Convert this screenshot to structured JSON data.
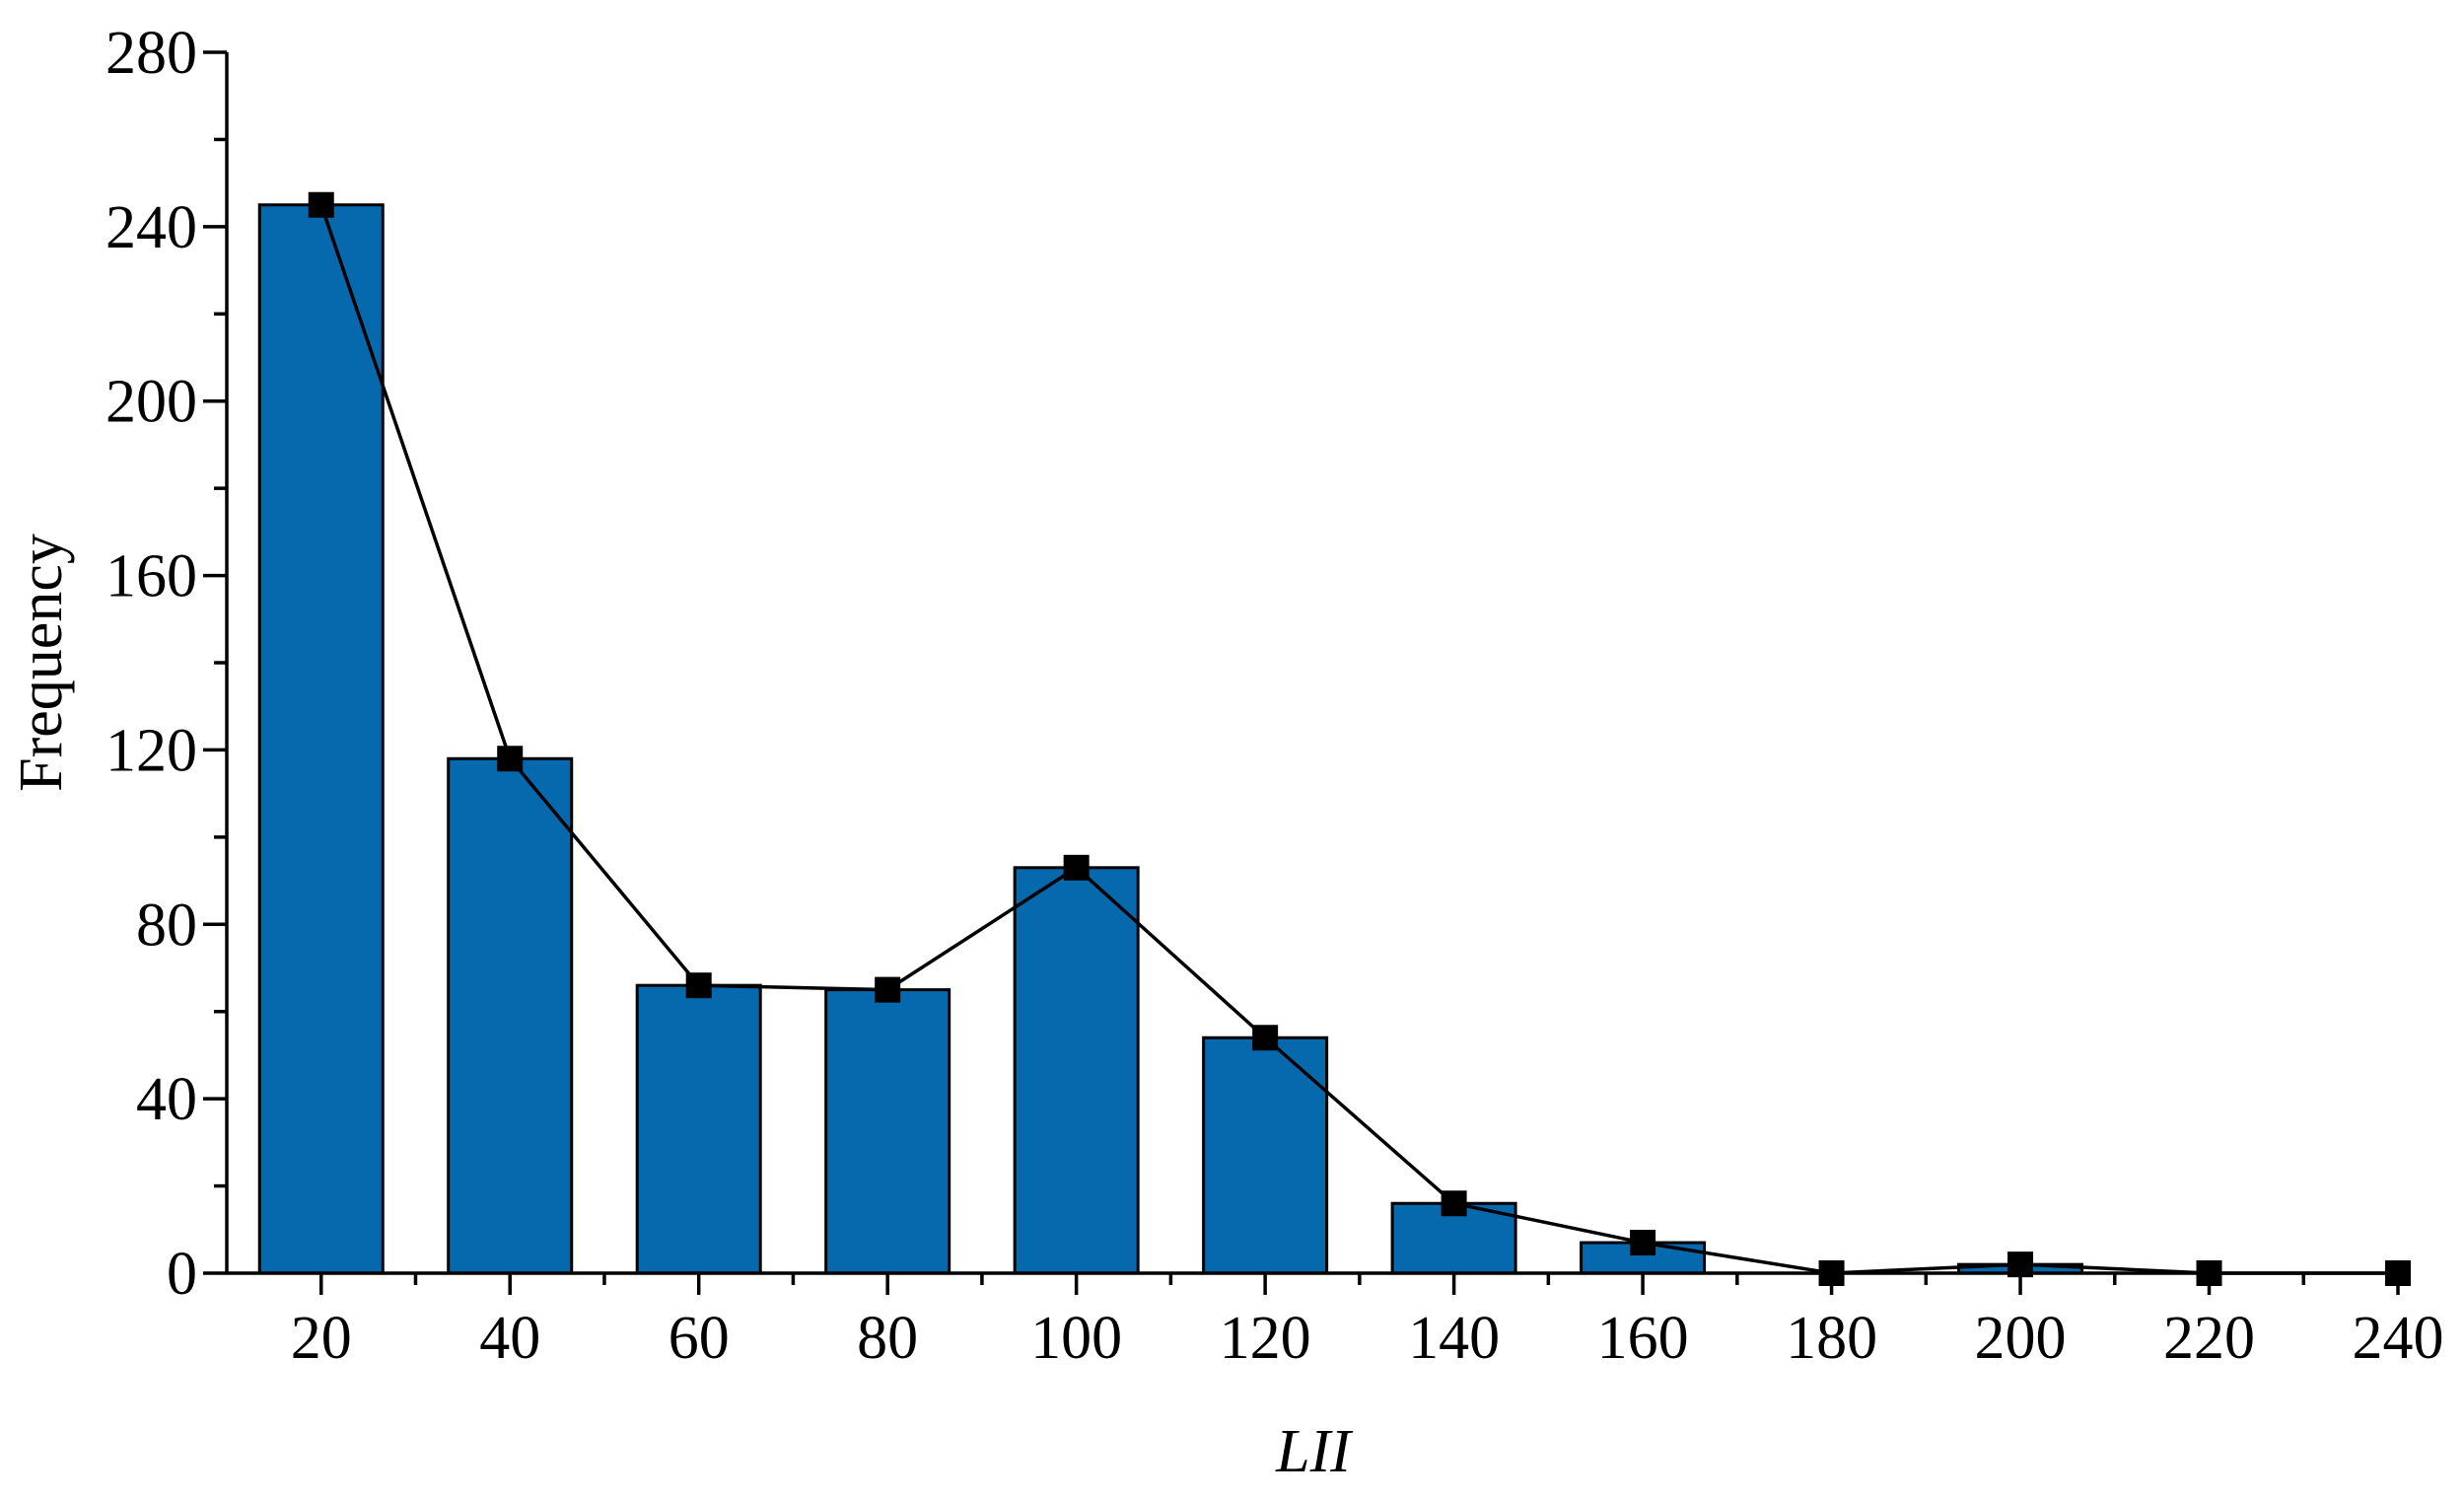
{
  "chart_data": {
    "type": "bar",
    "xlabel": "LII",
    "ylabel": "Frequency",
    "xlim": [
      10,
      240
    ],
    "ylim": [
      0,
      280
    ],
    "x_ticks": [
      20,
      40,
      60,
      80,
      100,
      120,
      140,
      160,
      180,
      200,
      220,
      240
    ],
    "x_minor_ticks": [
      30,
      50,
      70,
      90,
      110,
      130,
      150,
      170,
      190,
      210,
      230
    ],
    "y_ticks": [
      0,
      40,
      80,
      120,
      160,
      200,
      240,
      280
    ],
    "y_minor_ticks": [
      20,
      60,
      100,
      140,
      180,
      220,
      260
    ],
    "grid": false,
    "series": [
      {
        "kind": "bar",
        "color": "#0769ad",
        "x": [
          20,
          40,
          60,
          80,
          100,
          120,
          140,
          160,
          180,
          200,
          220,
          240
        ],
        "values": [
          245,
          118,
          66,
          65,
          93,
          54,
          16,
          7,
          0,
          2,
          0,
          0
        ]
      },
      {
        "kind": "line",
        "marker": "square",
        "color": "#000000",
        "x": [
          20,
          40,
          60,
          80,
          100,
          120,
          140,
          160,
          180,
          200,
          220,
          240
        ],
        "values": [
          245,
          118,
          66,
          65,
          93,
          54,
          16,
          7,
          0,
          2,
          0,
          0
        ]
      }
    ]
  }
}
